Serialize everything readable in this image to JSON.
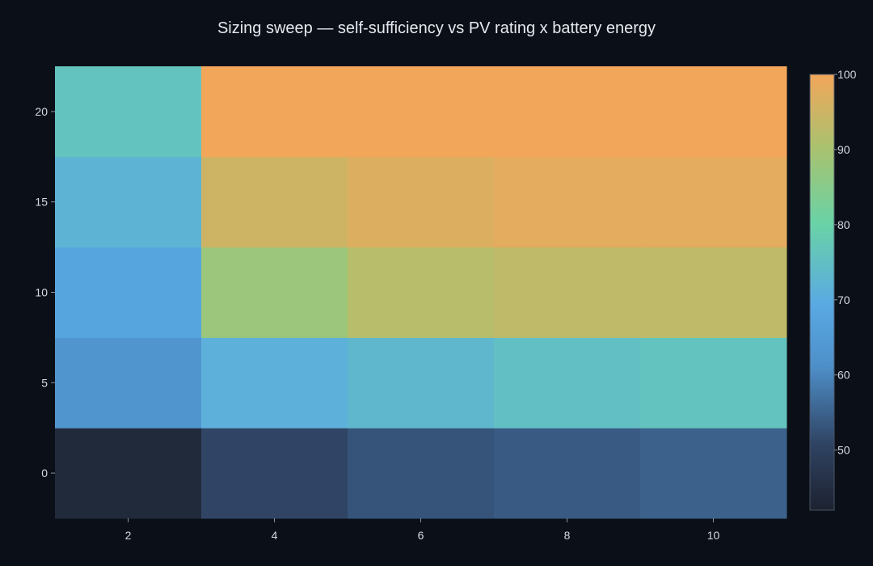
{
  "chart_data": {
    "type": "heatmap",
    "title": "Sizing sweep — self-sufficiency vs PV rating x battery energy",
    "xlabel": "",
    "ylabel": "",
    "x": [
      2,
      4,
      6,
      8,
      10
    ],
    "y": [
      0,
      5,
      10,
      15,
      20
    ],
    "x_tick_labels": [
      "2",
      "4",
      "6",
      "8",
      "10"
    ],
    "y_tick_labels": [
      "0",
      "5",
      "10",
      "15",
      "20"
    ],
    "xlim": [
      1,
      11
    ],
    "ylim": [
      -2.5,
      22.5
    ],
    "z": [
      [
        44,
        51,
        53,
        54,
        55
      ],
      [
        63,
        71,
        73,
        75,
        76
      ],
      [
        68,
        88,
        92,
        93,
        93
      ],
      [
        72,
        95,
        97,
        98,
        98
      ],
      [
        76,
        100,
        100,
        100,
        100
      ]
    ],
    "colorbar": {
      "min": 42,
      "max": 100,
      "tick_values": [
        50,
        60,
        70,
        80,
        90,
        100
      ],
      "tick_labels": [
        "50",
        "60",
        "70",
        "80",
        "90",
        "100"
      ]
    },
    "colorscale": [
      [
        0.0,
        "#1d2230"
      ],
      [
        0.15,
        "#2f4362"
      ],
      [
        0.33,
        "#4e8fc9"
      ],
      [
        0.47,
        "#59a9e3"
      ],
      [
        0.66,
        "#6ad3a6"
      ],
      [
        0.83,
        "#a9c26f"
      ],
      [
        1.0,
        "#f2a65a"
      ]
    ],
    "background": "#0b0f17",
    "grid": false
  }
}
